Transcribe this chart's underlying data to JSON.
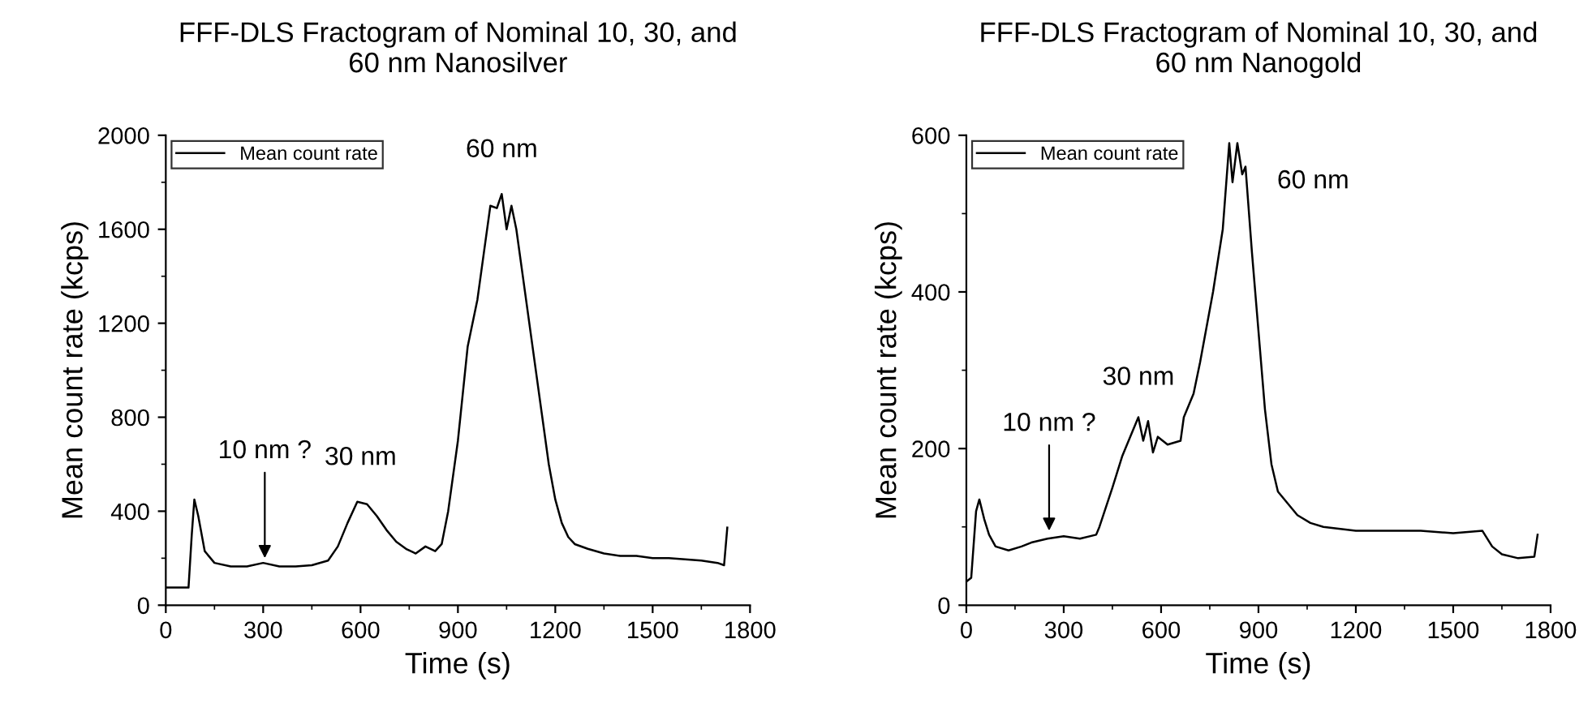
{
  "chart_data": [
    {
      "type": "line",
      "title": "FFF-DLS Fractogram of Nominal 10, 30, and\n60 nm Nanosilver",
      "xlabel": "Time (s)",
      "ylabel": "Mean count rate (kcps)",
      "xlim": [
        0,
        1800
      ],
      "xticks": [
        0,
        300,
        600,
        900,
        1200,
        1500,
        1800
      ],
      "ylim": [
        0,
        2000
      ],
      "yticks": [
        0,
        400,
        800,
        1200,
        1600,
        2000
      ],
      "legend": "top left",
      "grid": false,
      "annotations": [
        {
          "text": "10 nm ?",
          "x": 305,
          "y": 200
        },
        {
          "text": "30 nm",
          "x": 600,
          "y": 440
        },
        {
          "text": "60 nm",
          "x": 1035,
          "y": 1750
        }
      ],
      "series": [
        {
          "name": "Mean count rate",
          "color": "#000000",
          "x": [
            0,
            70,
            80,
            88,
            100,
            120,
            150,
            200,
            250,
            300,
            350,
            400,
            450,
            500,
            530,
            560,
            590,
            620,
            650,
            680,
            710,
            740,
            770,
            800,
            830,
            850,
            870,
            900,
            930,
            960,
            980,
            1000,
            1020,
            1035,
            1050,
            1065,
            1080,
            1100,
            1120,
            1140,
            1160,
            1180,
            1200,
            1220,
            1240,
            1260,
            1300,
            1350,
            1400,
            1450,
            1500,
            1550,
            1600,
            1650,
            1700,
            1720,
            1730
          ],
          "values": [
            75,
            75,
            300,
            450,
            380,
            230,
            180,
            165,
            165,
            180,
            165,
            165,
            170,
            190,
            250,
            350,
            440,
            430,
            380,
            320,
            270,
            240,
            220,
            250,
            230,
            260,
            400,
            700,
            1100,
            1300,
            1500,
            1700,
            1690,
            1750,
            1600,
            1700,
            1600,
            1400,
            1200,
            1000,
            800,
            600,
            450,
            350,
            290,
            260,
            240,
            220,
            210,
            210,
            200,
            200,
            195,
            190,
            180,
            170,
            330
          ]
        }
      ]
    },
    {
      "type": "line",
      "title": "FFF-DLS Fractogram of Nominal 10, 30, and\n60 nm Nanogold",
      "xlabel": "Time (s)",
      "ylabel": "Mean count rate (kcps)",
      "xlim": [
        0,
        1800
      ],
      "xticks": [
        0,
        300,
        600,
        900,
        1200,
        1500,
        1800
      ],
      "ylim": [
        0,
        600
      ],
      "yticks": [
        0,
        200,
        400,
        600
      ],
      "legend": "top left",
      "grid": false,
      "annotations": [
        {
          "text": "10 nm ?",
          "x": 255,
          "y": 95
        },
        {
          "text": "30 nm",
          "x": 530,
          "y": 240
        },
        {
          "text": "60 nm",
          "x": 860,
          "y": 560
        }
      ],
      "series": [
        {
          "name": "Mean count rate",
          "color": "#000000",
          "x": [
            0,
            15,
            30,
            40,
            55,
            70,
            90,
            130,
            170,
            200,
            250,
            300,
            350,
            400,
            410,
            450,
            480,
            510,
            530,
            545,
            560,
            575,
            590,
            620,
            660,
            670,
            700,
            720,
            760,
            790,
            810,
            820,
            835,
            850,
            860,
            880,
            900,
            920,
            940,
            960,
            990,
            1020,
            1060,
            1100,
            1200,
            1300,
            1400,
            1500,
            1590,
            1620,
            1650,
            1700,
            1750,
            1760
          ],
          "values": [
            30,
            35,
            120,
            135,
            110,
            90,
            75,
            70,
            75,
            80,
            85,
            88,
            85,
            90,
            100,
            150,
            190,
            220,
            240,
            210,
            235,
            195,
            215,
            205,
            210,
            240,
            270,
            310,
            400,
            480,
            590,
            540,
            590,
            550,
            560,
            450,
            350,
            250,
            180,
            145,
            130,
            115,
            105,
            100,
            95,
            95,
            95,
            92,
            95,
            75,
            65,
            60,
            62,
            90
          ]
        }
      ]
    }
  ]
}
